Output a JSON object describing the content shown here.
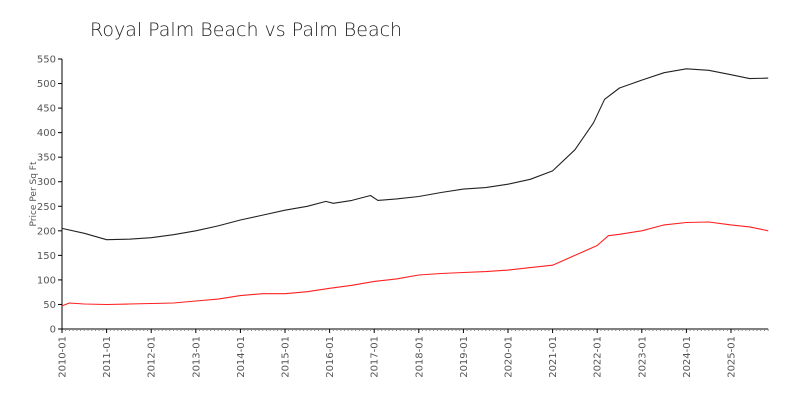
{
  "chart_data": {
    "type": "line",
    "title": "Royal Palm Beach vs Palm Beach",
    "xlabel": "",
    "ylabel": "Price Per Sq Ft",
    "ylim": [
      0,
      550
    ],
    "yticks": [
      0,
      50,
      100,
      150,
      200,
      250,
      300,
      350,
      400,
      450,
      500,
      550
    ],
    "xticks": [
      "2010-01",
      "2011-01",
      "2012-01",
      "2013-01",
      "2014-01",
      "2015-01",
      "2016-01",
      "2017-01",
      "2018-01",
      "2019-01",
      "2020-01",
      "2021-01",
      "2022-01",
      "2023-01",
      "2024-01",
      "2025-01"
    ],
    "grid": false,
    "legend": "none",
    "series": [
      {
        "color": "#222222",
        "points": [
          [
            "2010-01",
            205
          ],
          [
            "2010-07",
            195
          ],
          [
            "2011-01",
            182
          ],
          [
            "2011-07",
            183
          ],
          [
            "2012-01",
            186
          ],
          [
            "2012-07",
            192
          ],
          [
            "2013-01",
            200
          ],
          [
            "2013-07",
            210
          ],
          [
            "2014-01",
            222
          ],
          [
            "2014-07",
            232
          ],
          [
            "2015-01",
            242
          ],
          [
            "2015-07",
            250
          ],
          [
            "2015-12",
            260
          ],
          [
            "2016-02",
            256
          ],
          [
            "2016-07",
            262
          ],
          [
            "2016-12",
            272
          ],
          [
            "2017-02",
            262
          ],
          [
            "2017-07",
            265
          ],
          [
            "2018-01",
            270
          ],
          [
            "2018-07",
            278
          ],
          [
            "2019-01",
            285
          ],
          [
            "2019-07",
            288
          ],
          [
            "2020-01",
            295
          ],
          [
            "2020-07",
            305
          ],
          [
            "2021-01",
            322
          ],
          [
            "2021-07",
            365
          ],
          [
            "2021-12",
            420
          ],
          [
            "2022-03",
            468
          ],
          [
            "2022-07",
            491
          ],
          [
            "2023-01",
            507
          ],
          [
            "2023-07",
            522
          ],
          [
            "2024-01",
            530
          ],
          [
            "2024-07",
            527
          ],
          [
            "2025-01",
            518
          ],
          [
            "2025-06",
            510
          ],
          [
            "2025-11",
            511
          ]
        ]
      },
      {
        "color": "#ff2020",
        "points": [
          [
            "2010-01",
            47
          ],
          [
            "2010-03",
            53
          ],
          [
            "2010-07",
            51
          ],
          [
            "2011-01",
            50
          ],
          [
            "2011-07",
            51
          ],
          [
            "2012-01",
            52
          ],
          [
            "2012-07",
            53
          ],
          [
            "2013-01",
            57
          ],
          [
            "2013-07",
            61
          ],
          [
            "2014-01",
            68
          ],
          [
            "2014-07",
            72
          ],
          [
            "2015-01",
            72
          ],
          [
            "2015-07",
            76
          ],
          [
            "2016-01",
            83
          ],
          [
            "2016-07",
            89
          ],
          [
            "2017-01",
            97
          ],
          [
            "2017-07",
            102
          ],
          [
            "2018-01",
            110
          ],
          [
            "2018-07",
            113
          ],
          [
            "2019-01",
            115
          ],
          [
            "2019-07",
            117
          ],
          [
            "2020-01",
            120
          ],
          [
            "2020-07",
            125
          ],
          [
            "2021-01",
            130
          ],
          [
            "2021-07",
            150
          ],
          [
            "2022-01",
            170
          ],
          [
            "2022-04",
            190
          ],
          [
            "2022-07",
            193
          ],
          [
            "2023-01",
            200
          ],
          [
            "2023-07",
            212
          ],
          [
            "2024-01",
            217
          ],
          [
            "2024-07",
            218
          ],
          [
            "2025-01",
            212
          ],
          [
            "2025-06",
            208
          ],
          [
            "2025-11",
            200
          ]
        ]
      }
    ]
  }
}
